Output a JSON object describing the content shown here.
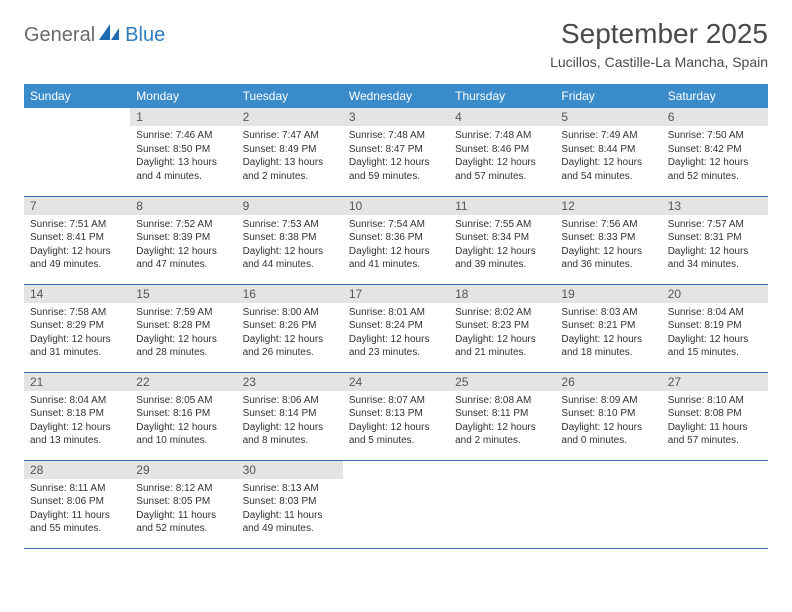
{
  "logo": {
    "part1": "General",
    "part2": "Blue"
  },
  "title": "September 2025",
  "location": "Lucillos, Castille-La Mancha, Spain",
  "colors": {
    "header_bg": "#3a8bc9",
    "header_text": "#ffffff",
    "daynum_bg": "#e4e4e4",
    "row_divider": "#2f6fa8",
    "logo_gray": "#6b6b6b",
    "logo_blue": "#2f7fbf",
    "body_text": "#333333"
  },
  "weekdays": [
    "Sunday",
    "Monday",
    "Tuesday",
    "Wednesday",
    "Thursday",
    "Friday",
    "Saturday"
  ],
  "weeks": [
    [
      null,
      {
        "n": "1",
        "sr": "7:46 AM",
        "ss": "8:50 PM",
        "dl": "13 hours and 4 minutes."
      },
      {
        "n": "2",
        "sr": "7:47 AM",
        "ss": "8:49 PM",
        "dl": "13 hours and 2 minutes."
      },
      {
        "n": "3",
        "sr": "7:48 AM",
        "ss": "8:47 PM",
        "dl": "12 hours and 59 minutes."
      },
      {
        "n": "4",
        "sr": "7:48 AM",
        "ss": "8:46 PM",
        "dl": "12 hours and 57 minutes."
      },
      {
        "n": "5",
        "sr": "7:49 AM",
        "ss": "8:44 PM",
        "dl": "12 hours and 54 minutes."
      },
      {
        "n": "6",
        "sr": "7:50 AM",
        "ss": "8:42 PM",
        "dl": "12 hours and 52 minutes."
      }
    ],
    [
      {
        "n": "7",
        "sr": "7:51 AM",
        "ss": "8:41 PM",
        "dl": "12 hours and 49 minutes."
      },
      {
        "n": "8",
        "sr": "7:52 AM",
        "ss": "8:39 PM",
        "dl": "12 hours and 47 minutes."
      },
      {
        "n": "9",
        "sr": "7:53 AM",
        "ss": "8:38 PM",
        "dl": "12 hours and 44 minutes."
      },
      {
        "n": "10",
        "sr": "7:54 AM",
        "ss": "8:36 PM",
        "dl": "12 hours and 41 minutes."
      },
      {
        "n": "11",
        "sr": "7:55 AM",
        "ss": "8:34 PM",
        "dl": "12 hours and 39 minutes."
      },
      {
        "n": "12",
        "sr": "7:56 AM",
        "ss": "8:33 PM",
        "dl": "12 hours and 36 minutes."
      },
      {
        "n": "13",
        "sr": "7:57 AM",
        "ss": "8:31 PM",
        "dl": "12 hours and 34 minutes."
      }
    ],
    [
      {
        "n": "14",
        "sr": "7:58 AM",
        "ss": "8:29 PM",
        "dl": "12 hours and 31 minutes."
      },
      {
        "n": "15",
        "sr": "7:59 AM",
        "ss": "8:28 PM",
        "dl": "12 hours and 28 minutes."
      },
      {
        "n": "16",
        "sr": "8:00 AM",
        "ss": "8:26 PM",
        "dl": "12 hours and 26 minutes."
      },
      {
        "n": "17",
        "sr": "8:01 AM",
        "ss": "8:24 PM",
        "dl": "12 hours and 23 minutes."
      },
      {
        "n": "18",
        "sr": "8:02 AM",
        "ss": "8:23 PM",
        "dl": "12 hours and 21 minutes."
      },
      {
        "n": "19",
        "sr": "8:03 AM",
        "ss": "8:21 PM",
        "dl": "12 hours and 18 minutes."
      },
      {
        "n": "20",
        "sr": "8:04 AM",
        "ss": "8:19 PM",
        "dl": "12 hours and 15 minutes."
      }
    ],
    [
      {
        "n": "21",
        "sr": "8:04 AM",
        "ss": "8:18 PM",
        "dl": "12 hours and 13 minutes."
      },
      {
        "n": "22",
        "sr": "8:05 AM",
        "ss": "8:16 PM",
        "dl": "12 hours and 10 minutes."
      },
      {
        "n": "23",
        "sr": "8:06 AM",
        "ss": "8:14 PM",
        "dl": "12 hours and 8 minutes."
      },
      {
        "n": "24",
        "sr": "8:07 AM",
        "ss": "8:13 PM",
        "dl": "12 hours and 5 minutes."
      },
      {
        "n": "25",
        "sr": "8:08 AM",
        "ss": "8:11 PM",
        "dl": "12 hours and 2 minutes."
      },
      {
        "n": "26",
        "sr": "8:09 AM",
        "ss": "8:10 PM",
        "dl": "12 hours and 0 minutes."
      },
      {
        "n": "27",
        "sr": "8:10 AM",
        "ss": "8:08 PM",
        "dl": "11 hours and 57 minutes."
      }
    ],
    [
      {
        "n": "28",
        "sr": "8:11 AM",
        "ss": "8:06 PM",
        "dl": "11 hours and 55 minutes."
      },
      {
        "n": "29",
        "sr": "8:12 AM",
        "ss": "8:05 PM",
        "dl": "11 hours and 52 minutes."
      },
      {
        "n": "30",
        "sr": "8:13 AM",
        "ss": "8:03 PM",
        "dl": "11 hours and 49 minutes."
      },
      null,
      null,
      null,
      null
    ]
  ],
  "labels": {
    "sunrise": "Sunrise:",
    "sunset": "Sunset:",
    "daylight": "Daylight:"
  }
}
